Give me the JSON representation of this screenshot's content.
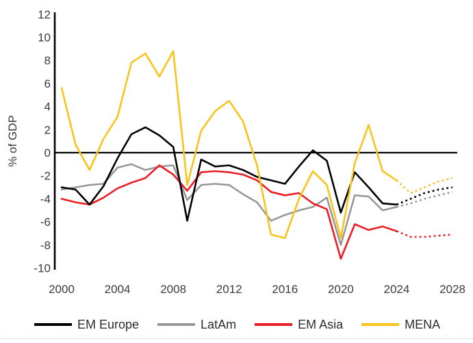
{
  "chart_data": {
    "type": "line",
    "title": "",
    "ylabel": "% of GDP",
    "xlabel": "",
    "grid": false,
    "legend_position": "bottom",
    "xlim": [
      2000,
      2028
    ],
    "ylim": [
      -10,
      12
    ],
    "x_ticks": [
      2000,
      2004,
      2008,
      2012,
      2016,
      2020,
      2024,
      2028
    ],
    "y_ticks": [
      12,
      10,
      8,
      6,
      4,
      2,
      0,
      -2,
      -4,
      -6,
      -8,
      -10
    ],
    "x": [
      2000,
      2001,
      2002,
      2003,
      2004,
      2005,
      2006,
      2007,
      2008,
      2009,
      2010,
      2011,
      2012,
      2013,
      2014,
      2015,
      2016,
      2017,
      2018,
      2019,
      2020,
      2021,
      2022,
      2023,
      2024,
      2025,
      2026,
      2027,
      2028
    ],
    "forecast_from_year": 2024,
    "zero_line": true,
    "series": [
      {
        "name": "EM Europe",
        "color": "#000000",
        "values": [
          -3.0,
          -3.2,
          -4.5,
          -2.9,
          -0.5,
          1.6,
          2.2,
          1.5,
          0.5,
          -5.9,
          -0.6,
          -1.2,
          -1.1,
          -1.5,
          -2.1,
          -2.4,
          -2.7,
          -1.2,
          0.2,
          -0.7,
          -5.2,
          -1.7,
          -3.0,
          -4.4,
          -4.5,
          -4.0,
          -3.5,
          -3.2,
          -3.0
        ]
      },
      {
        "name": "LatAm",
        "color": "#999896",
        "values": [
          -3.2,
          -3.0,
          -2.8,
          -2.7,
          -1.3,
          -1.0,
          -1.5,
          -1.2,
          -1.1,
          -4.1,
          -2.8,
          -2.7,
          -2.8,
          -3.6,
          -4.3,
          -5.9,
          -5.4,
          -5.0,
          -4.7,
          -3.9,
          -8.0,
          -3.7,
          -3.8,
          -5.0,
          -4.7,
          -4.4,
          -4.0,
          -3.7,
          -3.4
        ]
      },
      {
        "name": "EM Asia",
        "color": "#EC1B24",
        "values": [
          -4.0,
          -4.3,
          -4.5,
          -3.9,
          -3.1,
          -2.6,
          -2.2,
          -1.1,
          -1.9,
          -3.3,
          -1.7,
          -1.6,
          -1.7,
          -1.9,
          -2.4,
          -3.4,
          -3.7,
          -3.5,
          -4.4,
          -4.9,
          -9.2,
          -6.2,
          -6.7,
          -6.4,
          -6.8,
          -7.3,
          -7.3,
          -7.2,
          -7.1
        ]
      },
      {
        "name": "MENA",
        "color": "#FCC21C",
        "values": [
          5.6,
          0.7,
          -1.5,
          1.2,
          3.1,
          7.8,
          8.6,
          6.6,
          8.8,
          -2.8,
          1.9,
          3.6,
          4.5,
          2.7,
          -1.1,
          -7.1,
          -7.4,
          -4.0,
          -1.6,
          -2.8,
          -7.4,
          -0.9,
          2.4,
          -1.6,
          -2.4,
          -3.5,
          -3.0,
          -2.5,
          -2.2
        ]
      }
    ],
    "draw_order": [
      1,
      2,
      0,
      3
    ],
    "line_width": 2.6
  }
}
